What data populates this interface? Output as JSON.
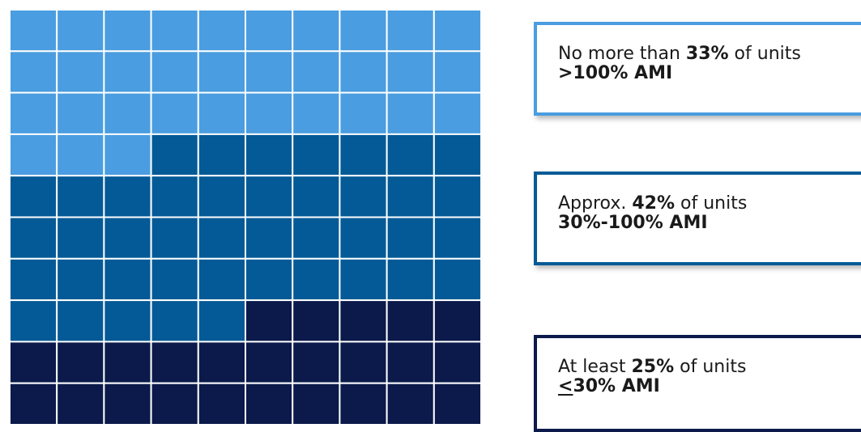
{
  "chart_data": {
    "type": "waffle",
    "title": "",
    "grid": {
      "columns": 10,
      "rows": 10
    },
    "fill_order": "top-left, row by row",
    "categories": [
      ">100% AMI",
      "30%-100% AMI",
      "≤30% AMI"
    ],
    "series": [
      {
        "name": ">100% AMI",
        "cells": 33,
        "color": "#4a9de0"
      },
      {
        "name": "30%-100% AMI",
        "cells": 42,
        "color": "#045a96"
      },
      {
        "name": "≤30% AMI",
        "cells": 25,
        "color": "#0b1a4a"
      }
    ],
    "cell_border_color": "#ffffff"
  },
  "cards": {
    "high": {
      "prefix": "No more than ",
      "percent": "33%",
      "suffix": " of units",
      "label": ">100% AMI",
      "accent": "#4a9de0"
    },
    "mid": {
      "prefix": "Approx. ",
      "percent": "42%",
      "suffix": " of units",
      "label": "30%-100% AMI",
      "accent": "#045a96"
    },
    "low": {
      "prefix": "At least ",
      "percent": "25%",
      "suffix": " of units",
      "label_symbol": "<",
      "label": "30% AMI",
      "accent": "#0b1a4a"
    }
  }
}
